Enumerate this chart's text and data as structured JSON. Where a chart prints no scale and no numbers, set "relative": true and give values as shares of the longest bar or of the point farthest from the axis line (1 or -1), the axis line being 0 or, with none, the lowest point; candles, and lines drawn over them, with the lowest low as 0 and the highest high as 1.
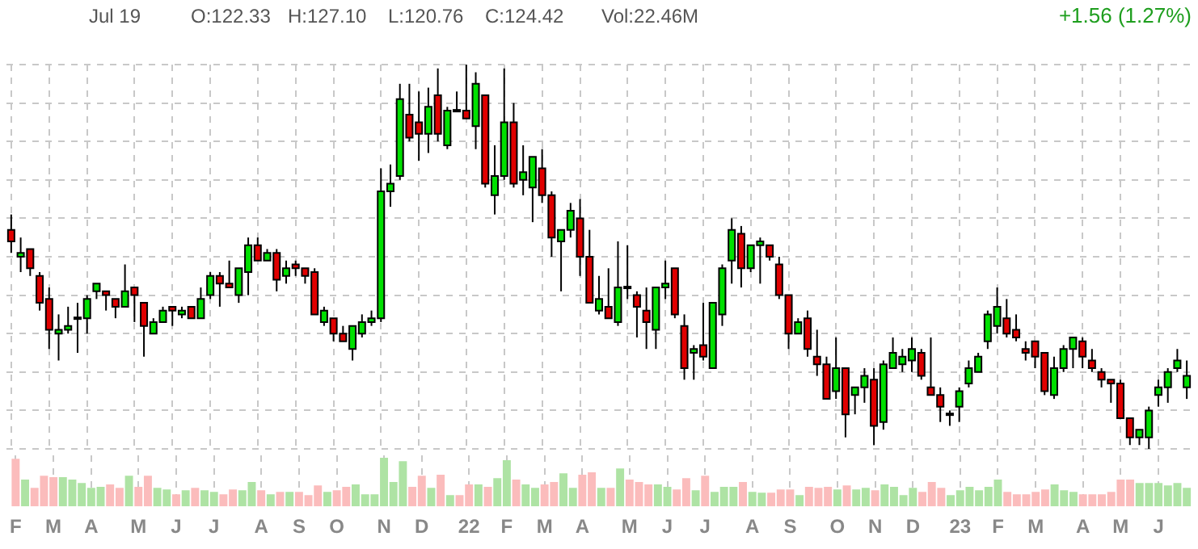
{
  "chart_data": [
    {
      "type": "candlestick",
      "relative": true,
      "grid": true,
      "tick_labels": false,
      "annotations": [
        "Jul 19",
        "O:122.33",
        "H:127.10",
        "L:120.76",
        "C:124.42",
        "Vol:22.46M",
        "+1.56 (1.27%)"
      ],
      "categories": [
        null,
        null,
        null,
        null,
        null,
        null,
        null,
        null,
        null,
        null,
        null,
        null,
        null,
        null,
        null,
        null,
        null,
        null,
        null,
        null,
        null,
        null,
        null,
        null,
        null,
        null,
        null,
        null,
        null,
        null,
        null,
        null,
        null,
        null,
        null,
        null,
        null,
        null,
        null,
        null,
        null,
        null,
        null,
        null,
        null,
        null,
        null,
        null,
        null,
        null,
        null,
        null,
        null,
        null,
        null,
        null,
        null,
        null,
        null,
        null,
        null,
        null,
        null,
        null,
        null,
        null,
        null,
        null,
        null,
        null,
        null,
        null,
        null,
        null,
        null,
        null,
        null,
        null,
        null,
        null,
        null,
        null,
        null,
        null,
        null,
        null,
        null,
        null,
        null,
        null,
        null,
        null,
        null,
        null,
        null,
        null,
        null,
        null,
        null,
        null,
        null,
        null,
        null,
        null,
        null,
        null,
        null,
        null,
        null,
        null,
        null,
        null,
        null,
        null,
        null,
        null,
        null,
        null,
        null,
        null,
        null,
        null,
        null,
        null,
        null
      ],
      "ohlc": [
        [
          0.57,
          0.61,
          0.51,
          0.54
        ],
        [
          0.5,
          0.55,
          0.46,
          0.51
        ],
        [
          0.52,
          0.52,
          0.45,
          0.47
        ],
        [
          0.45,
          0.46,
          0.36,
          0.38
        ],
        [
          0.39,
          0.42,
          0.26,
          0.31
        ],
        [
          0.3,
          0.35,
          0.23,
          0.31
        ],
        [
          0.31,
          0.37,
          0.3,
          0.32
        ],
        [
          0.34,
          0.38,
          0.25,
          0.34
        ],
        [
          0.34,
          0.4,
          0.3,
          0.39
        ],
        [
          0.41,
          0.43,
          0.39,
          0.43
        ],
        [
          0.41,
          0.41,
          0.36,
          0.4
        ],
        [
          0.39,
          0.39,
          0.34,
          0.37
        ],
        [
          0.37,
          0.48,
          0.37,
          0.41
        ],
        [
          0.42,
          0.42,
          0.33,
          0.4
        ],
        [
          0.38,
          0.38,
          0.24,
          0.32
        ],
        [
          0.3,
          0.34,
          0.3,
          0.33
        ],
        [
          0.33,
          0.37,
          0.33,
          0.36
        ],
        [
          0.37,
          0.37,
          0.32,
          0.36
        ],
        [
          0.35,
          0.37,
          0.34,
          0.36
        ],
        [
          0.37,
          0.37,
          0.34,
          0.34
        ],
        [
          0.34,
          0.42,
          0.34,
          0.39
        ],
        [
          0.4,
          0.46,
          0.39,
          0.45
        ],
        [
          0.45,
          0.46,
          0.37,
          0.43
        ],
        [
          0.43,
          0.49,
          0.42,
          0.42
        ],
        [
          0.4,
          0.47,
          0.38,
          0.47
        ],
        [
          0.46,
          0.55,
          0.4,
          0.53
        ],
        [
          0.53,
          0.55,
          0.49,
          0.49
        ],
        [
          0.49,
          0.52,
          0.49,
          0.51
        ],
        [
          0.51,
          0.52,
          0.41,
          0.44
        ],
        [
          0.45,
          0.49,
          0.43,
          0.47
        ],
        [
          0.48,
          0.49,
          0.45,
          0.47
        ],
        [
          0.47,
          0.47,
          0.43,
          0.45
        ],
        [
          0.46,
          0.47,
          0.35,
          0.35
        ],
        [
          0.33,
          0.37,
          0.32,
          0.36
        ],
        [
          0.34,
          0.34,
          0.28,
          0.3
        ],
        [
          0.3,
          0.32,
          0.28,
          0.28
        ],
        [
          0.26,
          0.32,
          0.23,
          0.32
        ],
        [
          0.3,
          0.35,
          0.29,
          0.33
        ],
        [
          0.33,
          0.36,
          0.32,
          0.34
        ],
        [
          0.34,
          0.73,
          0.33,
          0.67
        ],
        [
          0.67,
          0.74,
          0.63,
          0.69
        ],
        [
          0.71,
          0.95,
          0.7,
          0.91
        ],
        [
          0.87,
          0.95,
          0.8,
          0.81
        ],
        [
          0.85,
          0.93,
          0.75,
          0.82
        ],
        [
          0.82,
          0.94,
          0.77,
          0.89
        ],
        [
          0.92,
          0.99,
          0.8,
          0.82
        ],
        [
          0.79,
          0.89,
          0.78,
          0.88
        ],
        [
          0.88,
          0.93,
          0.88,
          0.88
        ],
        [
          0.88,
          1,
          0.86,
          0.86
        ],
        [
          0.84,
          0.98,
          0.78,
          0.95
        ],
        [
          0.92,
          0.92,
          0.68,
          0.69
        ],
        [
          0.66,
          0.79,
          0.61,
          0.71
        ],
        [
          0.71,
          0.99,
          0.7,
          0.85
        ],
        [
          0.85,
          0.9,
          0.68,
          0.69
        ],
        [
          0.7,
          0.79,
          0.66,
          0.72
        ],
        [
          0.68,
          0.76,
          0.59,
          0.76
        ],
        [
          0.73,
          0.78,
          0.64,
          0.66
        ],
        [
          0.66,
          0.67,
          0.5,
          0.55
        ],
        [
          0.54,
          0.57,
          0.41,
          0.57
        ],
        [
          0.57,
          0.64,
          0.55,
          0.62
        ],
        [
          0.6,
          0.65,
          0.45,
          0.5
        ],
        [
          0.5,
          0.57,
          0.38,
          0.38
        ],
        [
          0.36,
          0.45,
          0.35,
          0.39
        ],
        [
          0.37,
          0.47,
          0.34,
          0.34
        ],
        [
          0.33,
          0.54,
          0.32,
          0.42
        ],
        [
          0.42,
          0.53,
          0.39,
          0.42
        ],
        [
          0.4,
          0.41,
          0.29,
          0.37
        ],
        [
          0.36,
          0.42,
          0.26,
          0.33
        ],
        [
          0.31,
          0.42,
          0.26,
          0.42
        ],
        [
          0.42,
          0.49,
          0.39,
          0.43
        ],
        [
          0.47,
          0.47,
          0.34,
          0.35
        ],
        [
          0.32,
          0.35,
          0.18,
          0.21
        ],
        [
          0.25,
          0.27,
          0.18,
          0.26
        ],
        [
          0.27,
          0.38,
          0.23,
          0.24
        ],
        [
          0.21,
          0.38,
          0.21,
          0.38
        ],
        [
          0.35,
          0.48,
          0.32,
          0.47
        ],
        [
          0.49,
          0.6,
          0.43,
          0.57
        ],
        [
          0.56,
          0.58,
          0.42,
          0.47
        ],
        [
          0.47,
          0.53,
          0.46,
          0.53
        ],
        [
          0.53,
          0.55,
          0.43,
          0.54
        ],
        [
          0.53,
          0.53,
          0.49,
          0.5
        ],
        [
          0.48,
          0.5,
          0.39,
          0.4
        ],
        [
          0.4,
          0.4,
          0.26,
          0.3
        ],
        [
          0.3,
          0.34,
          0.3,
          0.33
        ],
        [
          0.34,
          0.36,
          0.24,
          0.26
        ],
        [
          0.24,
          0.31,
          0.19,
          0.22
        ],
        [
          0.22,
          0.24,
          0.13,
          0.13
        ],
        [
          0.15,
          0.29,
          0.13,
          0.21
        ],
        [
          0.21,
          0.21,
          0.03,
          0.09
        ],
        [
          0.14,
          0.16,
          0.09,
          0.16
        ],
        [
          0.16,
          0.21,
          0.12,
          0.19
        ],
        [
          0.18,
          0.21,
          0.01,
          0.06
        ],
        [
          0.07,
          0.23,
          0.05,
          0.22
        ],
        [
          0.21,
          0.29,
          0.21,
          0.25
        ],
        [
          0.22,
          0.26,
          0.2,
          0.24
        ],
        [
          0.23,
          0.29,
          0.2,
          0.26
        ],
        [
          0.25,
          0.26,
          0.18,
          0.19
        ],
        [
          0.16,
          0.29,
          0.14,
          0.14
        ],
        [
          0.14,
          0.16,
          0.07,
          0.11
        ],
        [
          0.09,
          0.1,
          0.06,
          0.09
        ],
        [
          0.11,
          0.16,
          0.07,
          0.15
        ],
        [
          0.17,
          0.23,
          0.16,
          0.21
        ],
        [
          0.2,
          0.25,
          0.2,
          0.24
        ],
        [
          0.28,
          0.36,
          0.26,
          0.35
        ],
        [
          0.32,
          0.42,
          0.3,
          0.37
        ],
        [
          0.34,
          0.39,
          0.29,
          0.3
        ],
        [
          0.31,
          0.35,
          0.28,
          0.29
        ],
        [
          0.26,
          0.28,
          0.23,
          0.25
        ],
        [
          0.28,
          0.28,
          0.21,
          0.24
        ],
        [
          0.25,
          0.25,
          0.14,
          0.15
        ],
        [
          0.14,
          0.24,
          0.13,
          0.21
        ],
        [
          0.21,
          0.27,
          0.2,
          0.26
        ],
        [
          0.26,
          0.29,
          0.21,
          0.29
        ],
        [
          0.28,
          0.29,
          0.21,
          0.24
        ],
        [
          0.23,
          0.26,
          0.2,
          0.21
        ],
        [
          0.2,
          0.21,
          0.16,
          0.18
        ],
        [
          0.18,
          0.18,
          0.12,
          0.17
        ],
        [
          0.17,
          0.18,
          0.08,
          0.08
        ],
        [
          0.08,
          0.08,
          0.01,
          0.03
        ],
        [
          0.03,
          0.05,
          0.01,
          0.05
        ],
        [
          0.03,
          0.11,
          0,
          0.1
        ],
        [
          0.14,
          0.18,
          0.11,
          0.16
        ],
        [
          0.16,
          0.21,
          0.12,
          0.2
        ],
        [
          0.21,
          0.26,
          0.2,
          0.23
        ],
        [
          0.16,
          0.23,
          0.13,
          0.19
        ]
      ]
    },
    {
      "type": "bar",
      "relative": true,
      "grid": "x",
      "categories": [
        "F",
        null,
        null,
        null,
        "M",
        null,
        null,
        null,
        "A",
        null,
        null,
        null,
        null,
        "M",
        null,
        null,
        null,
        "J",
        null,
        null,
        null,
        "J",
        null,
        null,
        null,
        null,
        "A",
        null,
        null,
        null,
        "S",
        null,
        null,
        null,
        "O",
        null,
        null,
        null,
        null,
        "N",
        null,
        null,
        null,
        "D",
        null,
        null,
        null,
        null,
        "22",
        null,
        null,
        null,
        "F",
        null,
        null,
        null,
        "M",
        null,
        null,
        null,
        "A",
        null,
        null,
        null,
        null,
        "M",
        null,
        null,
        null,
        "J",
        null,
        null,
        null,
        "J",
        null,
        null,
        null,
        null,
        "A",
        null,
        null,
        null,
        "S",
        null,
        null,
        null,
        null,
        "O",
        null,
        null,
        null,
        "N",
        null,
        null,
        null,
        "D",
        null,
        null,
        null,
        null,
        "23",
        null,
        null,
        null,
        "F",
        null,
        null,
        null,
        "M",
        null,
        null,
        null,
        null,
        "A",
        null,
        null,
        null,
        "M",
        null,
        null,
        null,
        "J",
        null,
        null,
        null
      ],
      "values": [
        0.98,
        0.55,
        0.38,
        0.63,
        0.6,
        0.6,
        0.55,
        0.48,
        0.38,
        0.4,
        0.45,
        0.38,
        0.63,
        0.4,
        0.63,
        0.38,
        0.35,
        0.25,
        0.33,
        0.38,
        0.33,
        0.3,
        0.25,
        0.35,
        0.33,
        0.5,
        0.33,
        0.25,
        0.3,
        0.3,
        0.3,
        0.23,
        0.43,
        0.3,
        0.33,
        0.4,
        0.45,
        0.25,
        0.25,
        1,
        0.5,
        0.93,
        0.4,
        0.63,
        0.38,
        0.65,
        0.23,
        0.23,
        0.45,
        0.45,
        0.4,
        0.58,
        0.95,
        0.55,
        0.45,
        0.38,
        0.45,
        0.5,
        0.68,
        0.38,
        0.65,
        0.7,
        0.38,
        0.38,
        0.78,
        0.55,
        0.5,
        0.45,
        0.45,
        0.4,
        0.35,
        0.58,
        0.33,
        0.63,
        0.3,
        0.4,
        0.4,
        0.5,
        0.3,
        0.28,
        0.28,
        0.35,
        0.35,
        0.23,
        0.4,
        0.38,
        0.4,
        0.35,
        0.43,
        0.35,
        0.38,
        0.33,
        0.45,
        0.4,
        0.23,
        0.38,
        0.3,
        0.5,
        0.38,
        0.23,
        0.33,
        0.4,
        0.33,
        0.4,
        0.55,
        0.3,
        0.25,
        0.25,
        0.3,
        0.35,
        0.45,
        0.33,
        0.3,
        0.25,
        0.25,
        0.25,
        0.3,
        0.55,
        0.55,
        0.48,
        0.48,
        0.48,
        0.43,
        0.48,
        0.38
      ],
      "colors": [
        "#fbbcbc",
        "#aee3a4",
        "#fbbcbc",
        "#fbbcbc",
        "#fbbcbc",
        "#aee3a4",
        "#aee3a4",
        "#aee3a4",
        "#aee3a4",
        "#aee3a4",
        "#fbbcbc",
        "#fbbcbc",
        "#aee3a4",
        "#fbbcbc",
        "#fbbcbc",
        "#aee3a4",
        "#aee3a4",
        "#fbbcbc",
        "#aee3a4",
        "#fbbcbc",
        "#aee3a4",
        "#aee3a4",
        "#fbbcbc",
        "#fbbcbc",
        "#aee3a4",
        "#aee3a4",
        "#fbbcbc",
        "#aee3a4",
        "#fbbcbc",
        "#aee3a4",
        "#fbbcbc",
        "#fbbcbc",
        "#fbbcbc",
        "#aee3a4",
        "#fbbcbc",
        "#fbbcbc",
        "#aee3a4",
        "#aee3a4",
        "#aee3a4",
        "#aee3a4",
        "#aee3a4",
        "#aee3a4",
        "#fbbcbc",
        "#fbbcbc",
        "#aee3a4",
        "#fbbcbc",
        "#aee3a4",
        "#fbbcbc",
        "#fbbcbc",
        "#aee3a4",
        "#fbbcbc",
        "#aee3a4",
        "#aee3a4",
        "#fbbcbc",
        "#aee3a4",
        "#aee3a4",
        "#fbbcbc",
        "#fbbcbc",
        "#aee3a4",
        "#aee3a4",
        "#fbbcbc",
        "#fbbcbc",
        "#aee3a4",
        "#fbbcbc",
        "#aee3a4",
        "#fbbcbc",
        "#fbbcbc",
        "#fbbcbc",
        "#aee3a4",
        "#aee3a4",
        "#fbbcbc",
        "#fbbcbc",
        "#aee3a4",
        "#fbbcbc",
        "#aee3a4",
        "#aee3a4",
        "#aee3a4",
        "#fbbcbc",
        "#aee3a4",
        "#aee3a4",
        "#fbbcbc",
        "#fbbcbc",
        "#fbbcbc",
        "#aee3a4",
        "#fbbcbc",
        "#fbbcbc",
        "#fbbcbc",
        "#aee3a4",
        "#fbbcbc",
        "#aee3a4",
        "#aee3a4",
        "#fbbcbc",
        "#aee3a4",
        "#aee3a4",
        "#aee3a4",
        "#aee3a4",
        "#fbbcbc",
        "#fbbcbc",
        "#fbbcbc",
        "#aee3a4",
        "#aee3a4",
        "#aee3a4",
        "#aee3a4",
        "#aee3a4",
        "#aee3a4",
        "#fbbcbc",
        "#fbbcbc",
        "#fbbcbc",
        "#fbbcbc",
        "#fbbcbc",
        "#aee3a4",
        "#aee3a4",
        "#aee3a4",
        "#fbbcbc",
        "#fbbcbc",
        "#fbbcbc",
        "#fbbcbc",
        "#fbbcbc",
        "#fbbcbc",
        "#aee3a4",
        "#aee3a4",
        "#aee3a4",
        "#aee3a4",
        "#aee3a4",
        "#aee3a4"
      ]
    }
  ]
}
